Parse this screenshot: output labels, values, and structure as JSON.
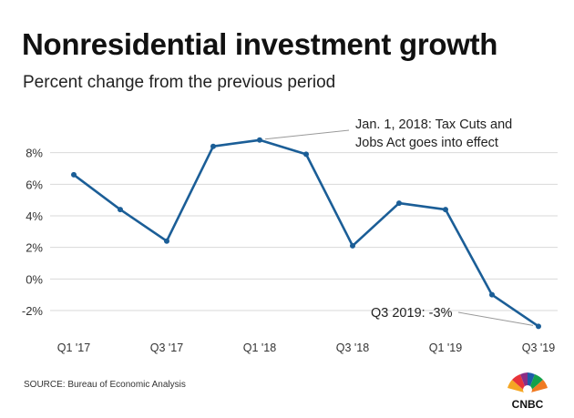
{
  "header": {
    "title": "Nonresidential investment growth",
    "subtitle": "Percent change from the previous period"
  },
  "footer": {
    "source": "SOURCE: Bureau of Economic Analysis",
    "logo_text": "CNBC"
  },
  "colors": {
    "line": "#1b5e97",
    "grid": "#d9d9d9",
    "annotation_line": "#999999",
    "text": "#333333"
  },
  "chart_data": {
    "type": "line",
    "categories": [
      "Q1 '17",
      "Q2 '17",
      "Q3 '17",
      "Q4 '17",
      "Q1 '18",
      "Q2 '18",
      "Q3 '18",
      "Q4 '18",
      "Q1 '19",
      "Q2 '19",
      "Q3 '19"
    ],
    "tick_labels": [
      "Q1 '17",
      "",
      "Q3 '17",
      "",
      "Q1 '18",
      "",
      "Q3 '18",
      "",
      "Q1 '19",
      "",
      "Q3 '19"
    ],
    "series": [
      {
        "values": [
          6.6,
          4.4,
          2.4,
          8.4,
          8.8,
          7.9,
          2.1,
          4.8,
          4.4,
          -1.0,
          -3.0
        ]
      }
    ],
    "yticks": [
      8,
      6,
      4,
      2,
      0,
      -2
    ],
    "ytick_labels": [
      "8%",
      "6%",
      "4%",
      "2%",
      "0%",
      "-2%"
    ],
    "ylim": [
      -3.5,
      10
    ],
    "grid": true,
    "annotations": [
      {
        "lines": [
          "Jan. 1, 2018: Tax Cuts and",
          "Jobs Act goes into effect"
        ],
        "point_index": 4
      },
      {
        "lines": [
          "Q3 2019: -3%"
        ],
        "point_index": 10
      }
    ]
  }
}
